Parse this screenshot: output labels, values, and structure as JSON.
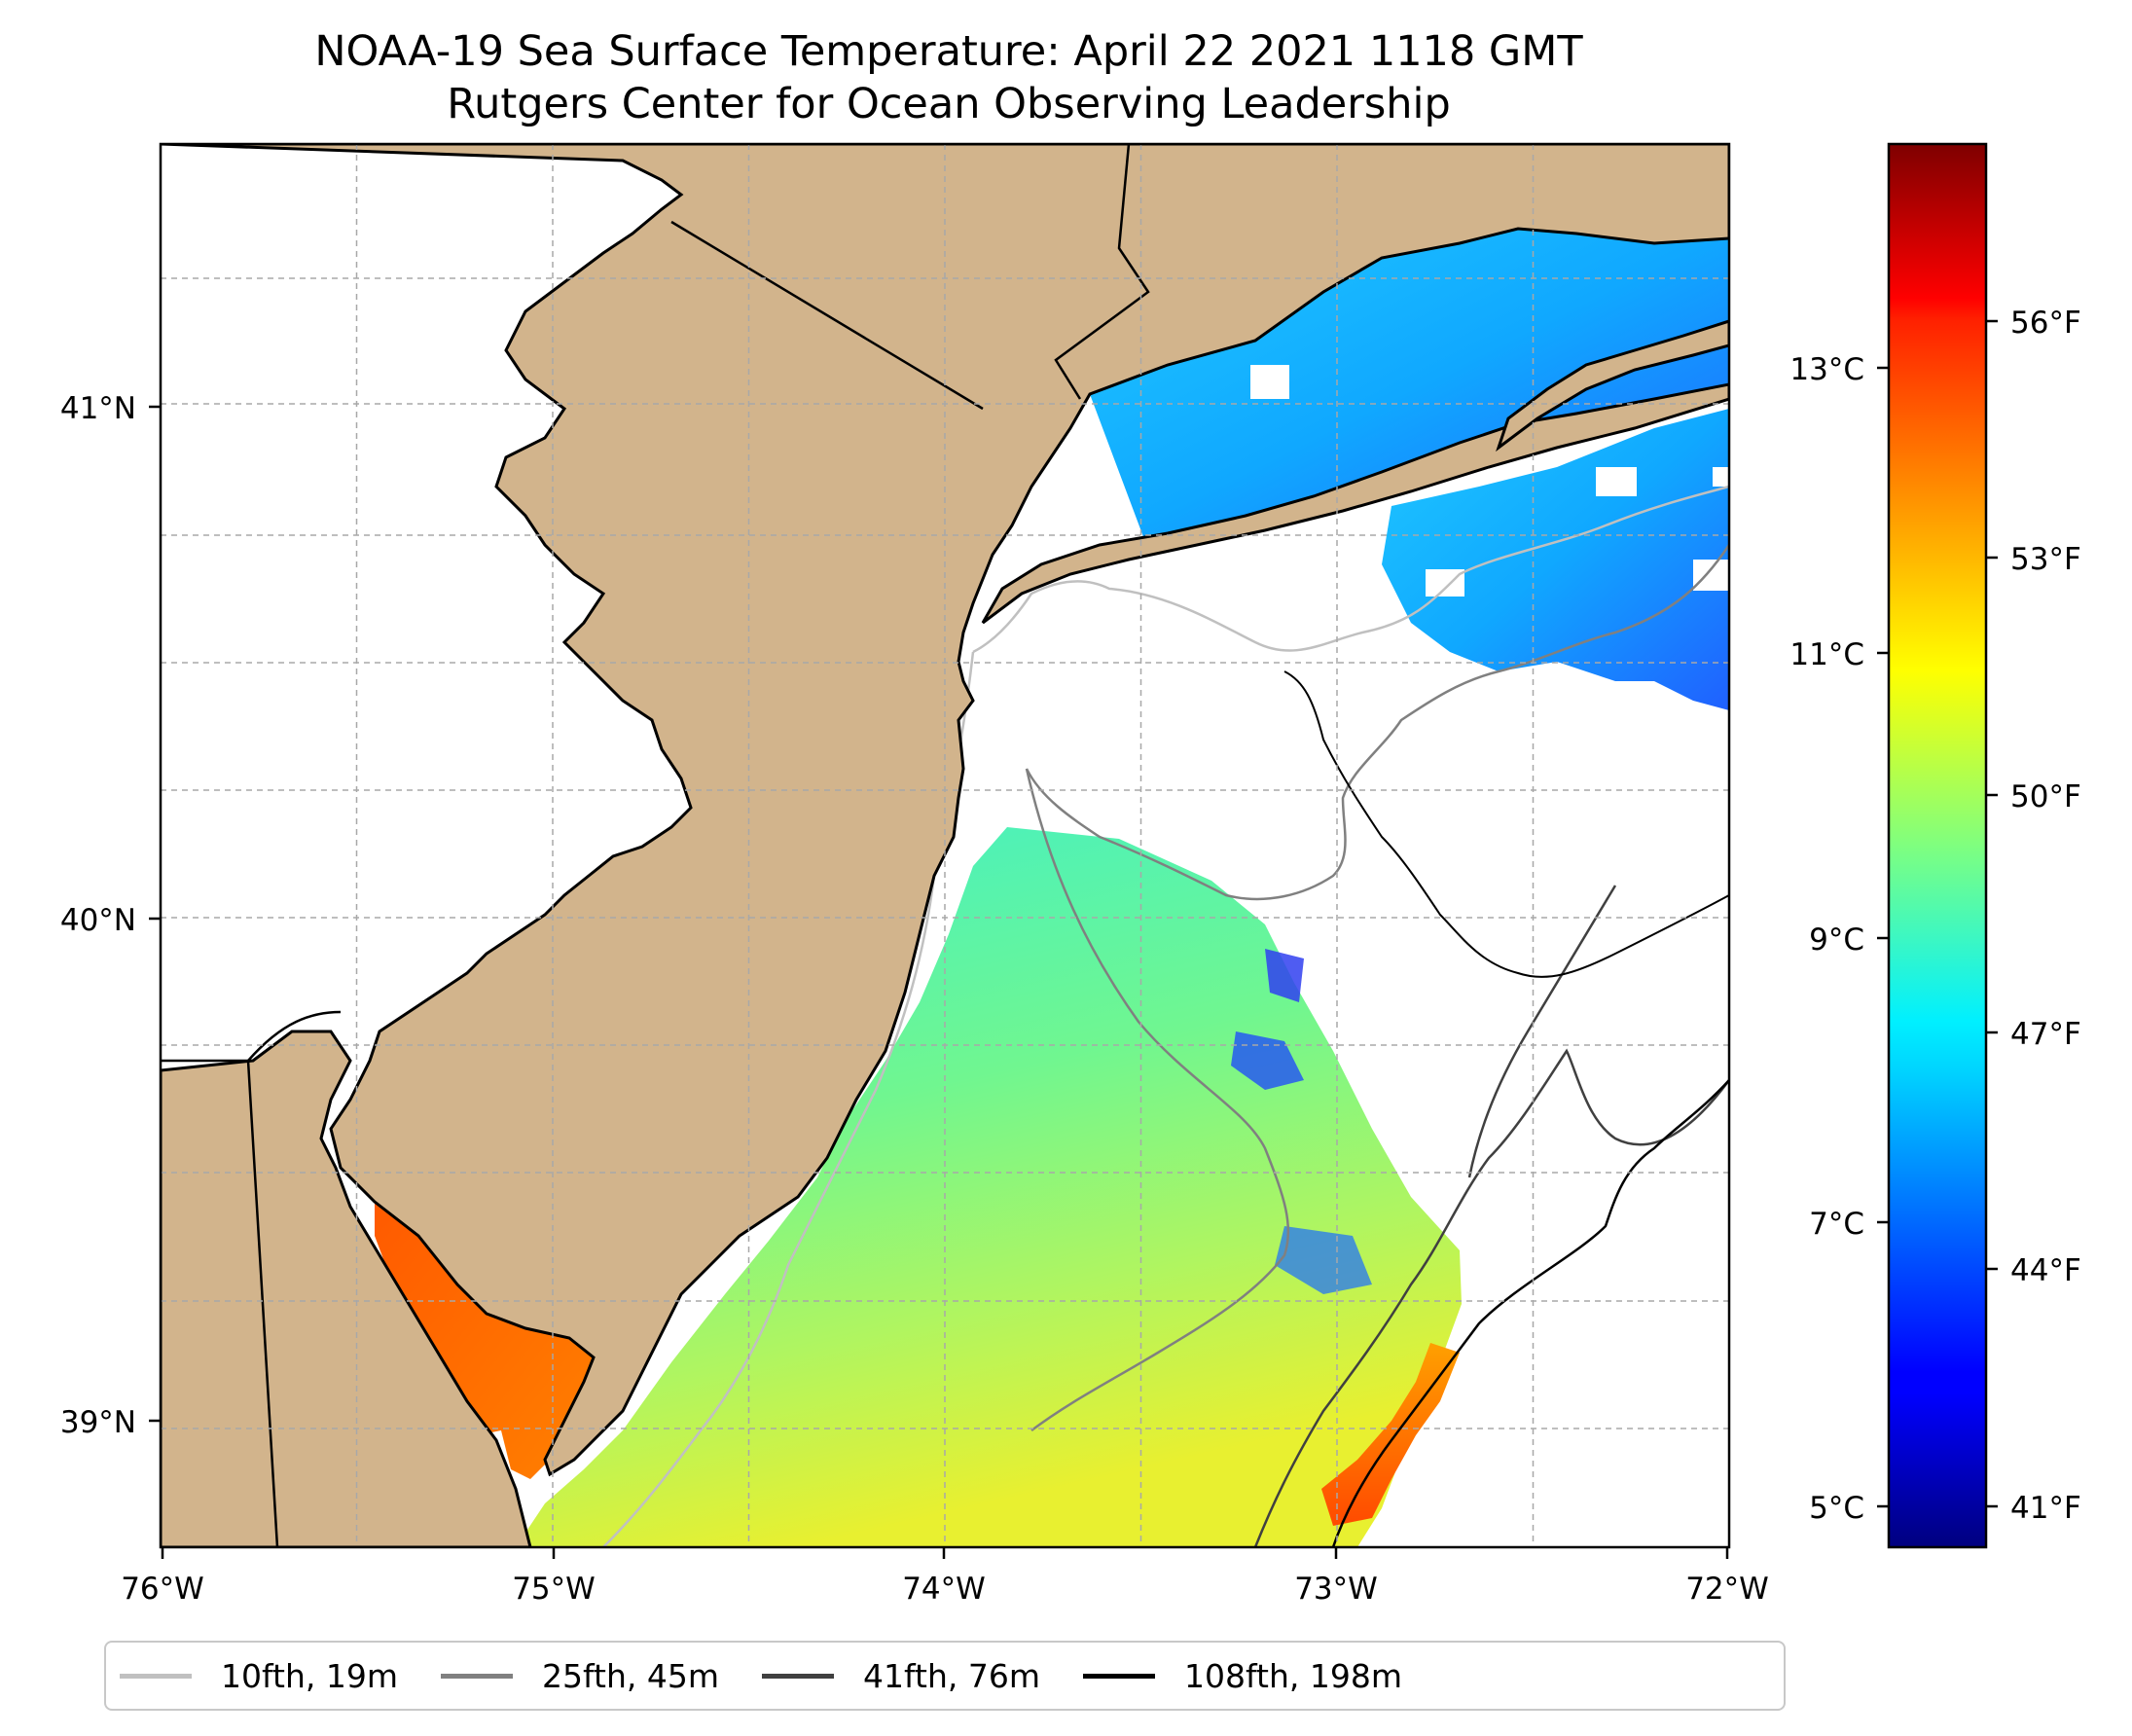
{
  "title": {
    "line1": "NOAA-19 Sea Surface Temperature: April 22 2021 1118 GMT",
    "line2": "Rutgers Center for Ocean Observing Leadership"
  },
  "map": {
    "lon_range": [
      -76,
      -72
    ],
    "lat_range": [
      38.75,
      41.55
    ],
    "lon_ticks": [
      "76°W",
      "75°W",
      "74°W",
      "73°W",
      "72°W"
    ],
    "lat_ticks": [
      "41°N",
      "40°N",
      "39°N"
    ],
    "land_color": "#d2b48c",
    "ocean_nodata_color": "#ffffff",
    "grid": "dashed light gray"
  },
  "colorbar": {
    "colormap": "jet",
    "celsius_ticks": [
      "13°C",
      "11°C",
      "9°C",
      "7°C",
      "5°C"
    ],
    "fahrenheit_ticks": [
      "56°F",
      "53°F",
      "50°F",
      "47°F",
      "44°F",
      "41°F"
    ]
  },
  "legend": {
    "items": [
      {
        "label": "10fth, 19m",
        "color": "#c0c0c0"
      },
      {
        "label": "25fth, 45m",
        "color": "#808080"
      },
      {
        "label": "41fth, 76m",
        "color": "#404040"
      },
      {
        "label": "108fth, 198m",
        "color": "#000000"
      }
    ]
  }
}
